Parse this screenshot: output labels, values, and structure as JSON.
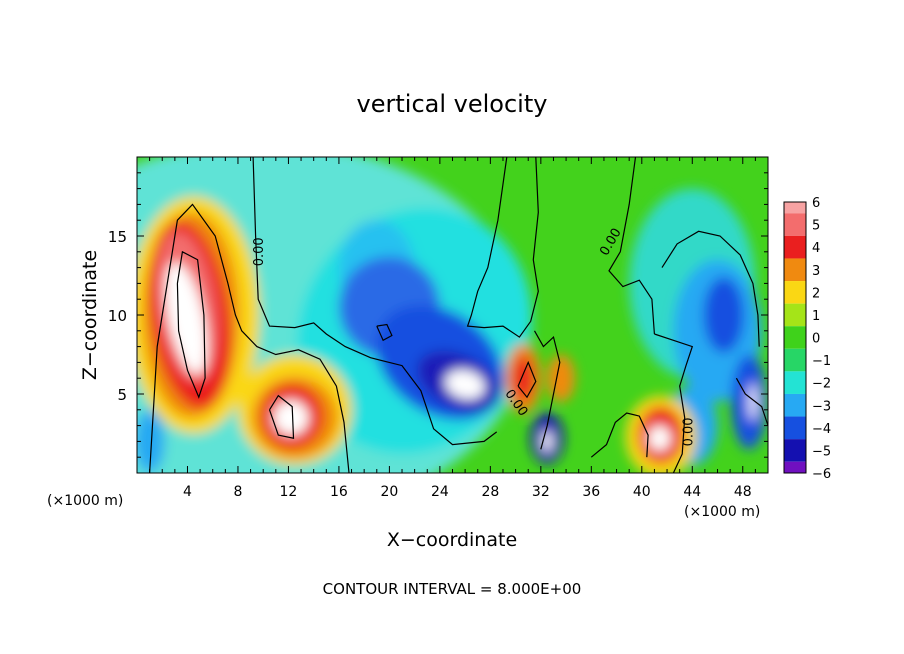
{
  "chart_data": {
    "type": "heatmap",
    "title": "vertical velocity",
    "xlabel": "X−coordinate",
    "ylabel": "Z−coordinate",
    "x_unit_left": "(×1000 m)",
    "x_unit_right": "(×1000 m)",
    "xlim": [
      0,
      50
    ],
    "ylim": [
      0,
      20
    ],
    "x_ticks": [
      4,
      8,
      12,
      16,
      20,
      24,
      28,
      32,
      36,
      40,
      44,
      48
    ],
    "y_ticks": [
      5,
      10,
      15
    ],
    "contour_label": "0.00",
    "footer": "CONTOUR INTERVAL = 8.000E+00",
    "colorbar": {
      "levels": [
        6,
        5,
        4,
        3,
        2,
        1,
        0,
        -1,
        -2,
        -3,
        -4,
        -5,
        -6
      ],
      "colors": [
        "#f7a3a3",
        "#f36d6d",
        "#ea1f1f",
        "#f08a10",
        "#fad714",
        "#a5e418",
        "#3fd21b",
        "#27d666",
        "#23e3d4",
        "#27a9f3",
        "#1650e0",
        "#1410b0",
        "#7010c0"
      ]
    },
    "features": [
      {
        "kind": "updraft",
        "x": 4.2,
        "z": 10,
        "peak": 8
      },
      {
        "kind": "updraft",
        "x": 12.5,
        "z": 3.5,
        "peak": 6.5
      },
      {
        "kind": "updraft",
        "x": 41.5,
        "z": 2.2,
        "peak": 6.5
      },
      {
        "kind": "updraft",
        "x": 30.6,
        "z": 6,
        "peak": 4.5
      },
      {
        "kind": "downdraft",
        "x": 26,
        "z": 5.6,
        "peak": -7
      },
      {
        "kind": "downdraft",
        "x": 32.5,
        "z": 2,
        "peak": -5.5
      },
      {
        "kind": "downdraft",
        "x": 48.5,
        "z": 4.5,
        "peak": -5
      },
      {
        "kind": "downdraft",
        "x": 46.5,
        "z": 10,
        "peak": -4
      }
    ]
  }
}
